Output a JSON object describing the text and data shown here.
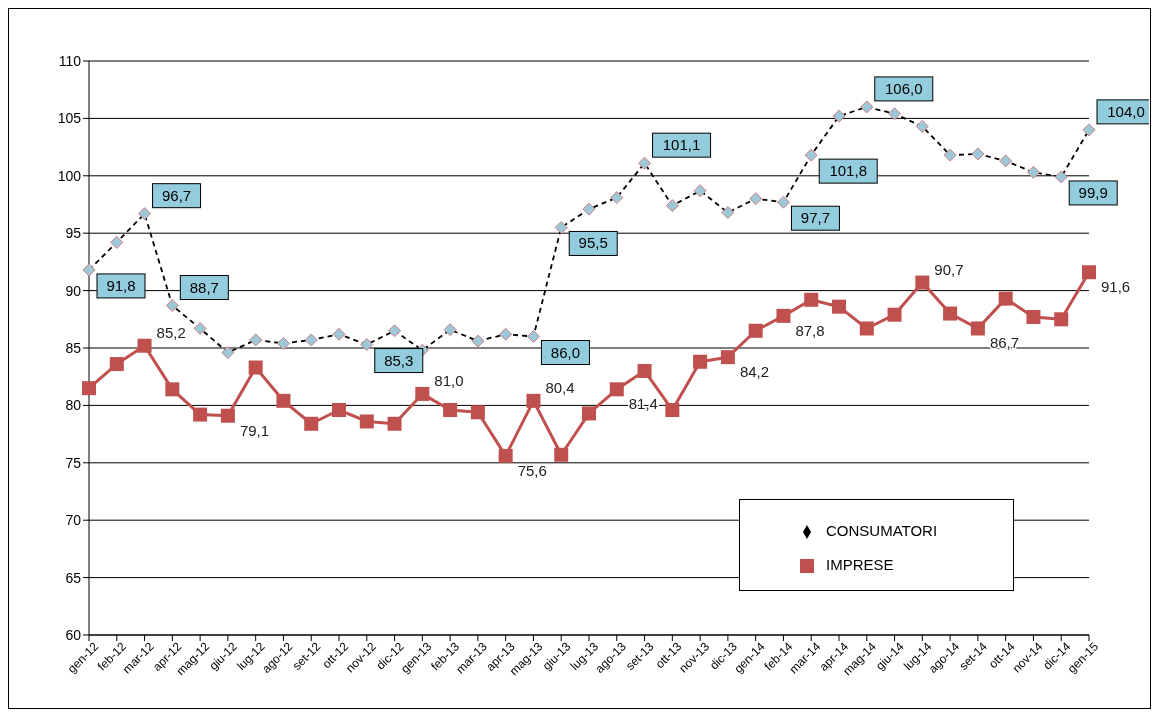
{
  "chart_data": {
    "type": "line",
    "categories": [
      "gen-12",
      "feb-12",
      "mar-12",
      "apr-12",
      "mag-12",
      "giu-12",
      "lug-12",
      "ago-12",
      "set-12",
      "ott-12",
      "nov-12",
      "dic-12",
      "gen-13",
      "feb-13",
      "mar-13",
      "apr-13",
      "mag-13",
      "giu-13",
      "lug-13",
      "ago-13",
      "set-13",
      "ott-13",
      "nov-13",
      "dic-13",
      "gen-14",
      "feb-14",
      "mar-14",
      "apr-14",
      "mag-14",
      "giu-14",
      "lug-14",
      "ago-14",
      "set-14",
      "ott-14",
      "nov-14",
      "dic-14",
      "gen-15"
    ],
    "series": [
      {
        "name": "CONSUMATORI",
        "color": "#000000",
        "marker": "diamond",
        "line_style": "dashed",
        "values": [
          91.8,
          94.2,
          96.7,
          88.7,
          86.7,
          84.6,
          85.7,
          85.4,
          85.7,
          86.2,
          85.3,
          86.5,
          84.8,
          86.6,
          85.6,
          86.2,
          86.0,
          95.5,
          97.1,
          98.1,
          101.1,
          97.4,
          98.7,
          96.8,
          98.0,
          97.7,
          101.8,
          105.2,
          106.0,
          105.4,
          104.3,
          101.8,
          101.9,
          101.3,
          100.3,
          99.9,
          104.0
        ],
        "value_labels": [
          "91,8",
          null,
          "96,7",
          "88,7",
          null,
          null,
          null,
          null,
          null,
          null,
          "85,3",
          null,
          null,
          null,
          null,
          null,
          "86,0",
          "95,5",
          null,
          null,
          "101,1",
          null,
          null,
          null,
          null,
          "97,7",
          "101,8",
          null,
          "106,0",
          null,
          null,
          null,
          null,
          null,
          null,
          "99,9",
          "104,0"
        ]
      },
      {
        "name": "IMPRESE",
        "color": "#c0504d",
        "marker": "square",
        "line_style": "solid",
        "values": [
          81.5,
          83.6,
          85.2,
          81.4,
          79.2,
          79.1,
          83.3,
          80.4,
          78.4,
          79.6,
          78.6,
          78.4,
          81.0,
          79.6,
          79.4,
          75.6,
          80.4,
          75.7,
          79.3,
          81.4,
          83.0,
          79.6,
          83.8,
          84.2,
          86.5,
          87.8,
          89.2,
          88.6,
          86.7,
          87.9,
          90.7,
          88.0,
          86.7,
          89.3,
          87.7,
          87.5,
          91.6
        ],
        "value_labels": [
          null,
          null,
          "85,2",
          null,
          null,
          "79,1",
          null,
          null,
          null,
          null,
          null,
          null,
          "81,0",
          null,
          null,
          "75,6",
          "80,4",
          null,
          null,
          "81,4",
          null,
          null,
          null,
          "84,2",
          null,
          "87,8",
          null,
          null,
          null,
          null,
          "90,7",
          null,
          "86,7",
          null,
          null,
          null,
          "91,6"
        ]
      }
    ],
    "ylim": [
      60,
      110
    ],
    "yticks": [
      60,
      65,
      70,
      75,
      80,
      85,
      90,
      95,
      100,
      105,
      110
    ],
    "grid": "y",
    "legend": "bottom right"
  }
}
